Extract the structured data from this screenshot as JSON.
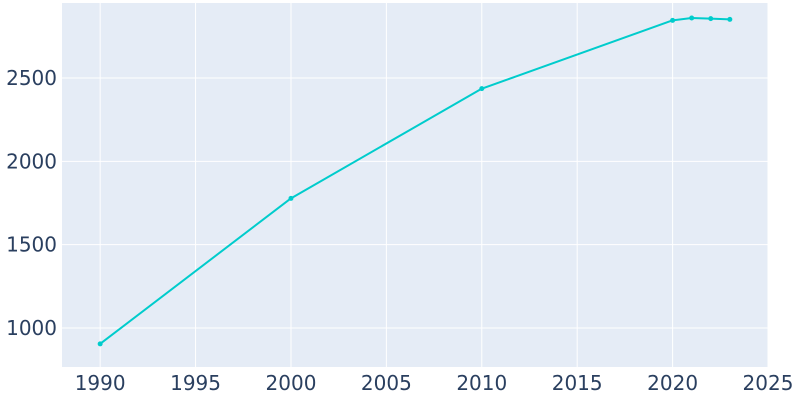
{
  "chart_data": {
    "type": "line",
    "title": "",
    "xlabel": "",
    "ylabel": "",
    "x": [
      1990,
      2000,
      2010,
      2020,
      2021,
      2022,
      2023
    ],
    "series": [
      {
        "values": [
          905,
          1778,
          2436,
          2846,
          2860,
          2856,
          2852
        ]
      }
    ],
    "xlim": [
      1988,
      2025
    ],
    "ylim": [
      766,
      2950
    ],
    "x_ticks": [
      1990,
      1995,
      2000,
      2005,
      2010,
      2015,
      2020,
      2025
    ],
    "y_ticks": [
      1000,
      1500,
      2000,
      2500
    ],
    "x_tick_labels": [
      "1990",
      "1995",
      "2000",
      "2005",
      "2010",
      "2015",
      "2020",
      "2025"
    ],
    "y_tick_labels": [
      "1000",
      "1500",
      "2000",
      "2500"
    ],
    "grid": true,
    "legend": "none",
    "colors": {
      "plot_background": "#e5ecf6",
      "grid": "#ffffff",
      "line": "#00cccc",
      "tick_text": "#2a3f5f"
    }
  }
}
